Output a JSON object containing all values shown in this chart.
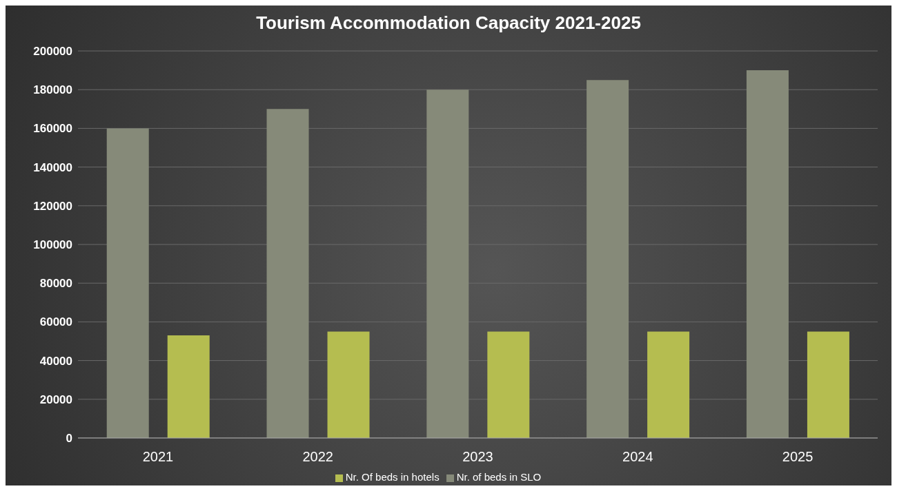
{
  "chart_data": {
    "type": "bar",
    "title": "Tourism Accommodation Capacity 2021-2025",
    "categories": [
      "2021",
      "2022",
      "2023",
      "2024",
      "2025"
    ],
    "series": [
      {
        "name": "Nr. of beds in SLO",
        "color": "#868a79",
        "values": [
          160000,
          170000,
          180000,
          185000,
          190000
        ]
      },
      {
        "name": "Nr. Of beds in hotels",
        "color": "#b5bd50",
        "values": [
          53000,
          55000,
          55000,
          55000,
          55000
        ]
      }
    ],
    "ylim": [
      0,
      200000
    ],
    "yticks": [
      0,
      20000,
      40000,
      60000,
      80000,
      100000,
      120000,
      140000,
      160000,
      180000,
      200000
    ],
    "grid": "y",
    "legend": "bottom"
  }
}
